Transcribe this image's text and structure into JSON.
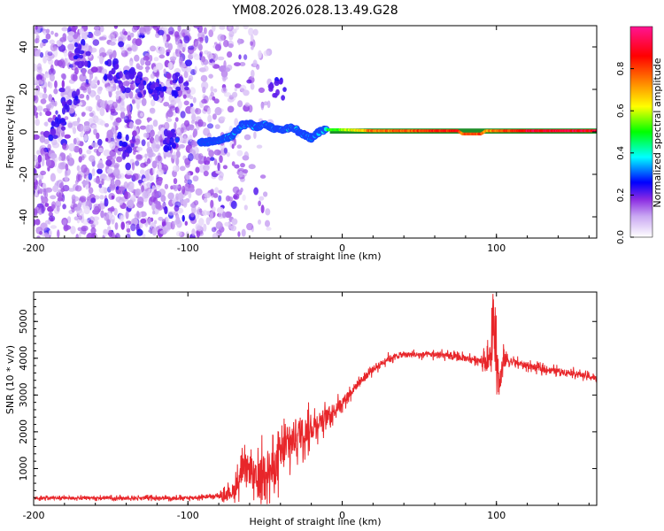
{
  "title": "YM08.2026.028.13.49.G28",
  "chart_data": [
    {
      "type": "heatmap",
      "name": "spectrogram",
      "xlabel": "Height of straight line (km)",
      "ylabel": "Frequency (Hz)",
      "xlim": [
        -200,
        165
      ],
      "ylim": [
        -50,
        50
      ],
      "xticks": [
        -200,
        -100,
        0,
        100
      ],
      "xtick_labels": [
        "-200",
        "-100",
        "0",
        "100"
      ],
      "yticks": [
        -40,
        -20,
        0,
        20,
        40
      ],
      "ytick_labels": [
        "-40",
        "-20",
        "0",
        "20",
        "40"
      ],
      "colorbar": {
        "label": "Normalized spectral amplitude",
        "range": [
          0,
          1
        ],
        "ticks": [
          0,
          0.2,
          0.4,
          0.6,
          0.8
        ],
        "tick_labels": [
          "0.0",
          "0.2",
          "0.4",
          "0.6",
          "0.8"
        ],
        "colors": [
          "#ffffff",
          "#8a2be2",
          "#0000ff",
          "#00ffff",
          "#00ff00",
          "#ffff00",
          "#ff8000",
          "#ff0000",
          "#ff1493"
        ]
      },
      "signal_track": {
        "description_points": [
          [
            -92,
            -5
          ],
          [
            -80,
            -4
          ],
          [
            -72,
            -2
          ],
          [
            -65,
            3
          ],
          [
            -60,
            4
          ],
          [
            -55,
            2
          ],
          [
            -50,
            4
          ],
          [
            -45,
            2
          ],
          [
            -40,
            1
          ],
          [
            -35,
            2
          ],
          [
            -30,
            1
          ],
          [
            -25,
            -1
          ],
          [
            -20,
            -3
          ],
          [
            -15,
            0
          ],
          [
            -10,
            1
          ],
          [
            0,
            1
          ],
          [
            20,
            0.5
          ],
          [
            50,
            0.5
          ],
          [
            75,
            0.5
          ],
          [
            78,
            -1
          ],
          [
            90,
            -1
          ],
          [
            93,
            0.5
          ],
          [
            120,
            0.5
          ],
          [
            165,
            0.5
          ]
        ],
        "amplitude": [
          0.25,
          0.3,
          0.35,
          0.3,
          0.35,
          0.3,
          0.35,
          0.3,
          0.35,
          0.35,
          0.35,
          0.3,
          0.3,
          0.35,
          0.45,
          0.55,
          0.75,
          0.8,
          0.85,
          0.75,
          0.8,
          0.7,
          0.9,
          0.9
        ]
      },
      "noise_region": {
        "x_range": [
          -200,
          -60
        ],
        "y_range": [
          -50,
          50
        ]
      }
    },
    {
      "type": "line",
      "name": "snr",
      "xlabel": "Height of straight line (km)",
      "ylabel": "SNR (10 * v/v)",
      "xlim": [
        -200,
        165
      ],
      "ylim": [
        0,
        5800
      ],
      "xticks": [
        -200,
        -100,
        0,
        100
      ],
      "xtick_labels": [
        "-200",
        "-100",
        "0",
        "100"
      ],
      "yticks": [
        1000,
        2000,
        3000,
        4000,
        5000
      ],
      "ytick_labels": [
        "1000",
        "2000",
        "3000",
        "4000",
        "5000"
      ],
      "color": "#e8262a",
      "envelope": {
        "x": [
          -200,
          -100,
          -80,
          -75,
          -70,
          -65,
          -60,
          -55,
          -50,
          -45,
          -40,
          -35,
          -30,
          -25,
          -20,
          -15,
          -10,
          -5,
          0,
          10,
          20,
          30,
          40,
          50,
          60,
          70,
          80,
          90,
          95,
          98,
          100,
          102,
          105,
          110,
          120,
          130,
          140,
          150,
          165
        ],
        "y": [
          200,
          200,
          250,
          300,
          400,
          900,
          1000,
          600,
          1100,
          900,
          1400,
          1600,
          1900,
          2000,
          2100,
          2300,
          2400,
          2600,
          2800,
          3300,
          3700,
          4000,
          4100,
          4100,
          4100,
          4050,
          4000,
          3950,
          3900,
          4400,
          4000,
          3300,
          4000,
          3900,
          3800,
          3700,
          3650,
          3600,
          3450
        ]
      },
      "noise_amplitude": {
        "x": [
          -200,
          -80,
          -70,
          -60,
          -50,
          -40,
          -30,
          -20,
          -10,
          0,
          20,
          40,
          90,
          95,
          100,
          105,
          110,
          165
        ],
        "y": [
          80,
          100,
          500,
          900,
          1100,
          1200,
          1000,
          700,
          500,
          300,
          200,
          150,
          200,
          700,
          1300,
          600,
          200,
          150
        ]
      }
    }
  ]
}
